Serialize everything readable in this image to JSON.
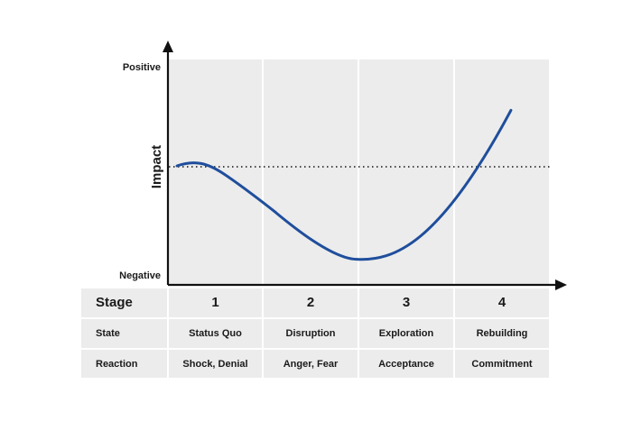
{
  "chart_data": {
    "type": "line",
    "ylabel": "Impact",
    "y_top_label": "Positive",
    "y_bottom_label": "Negative",
    "baseline_style": "dotted",
    "curve_color": "#1f4e9c",
    "panel_color": "#ececec",
    "stages": [
      "1",
      "2",
      "3",
      "4"
    ],
    "curve_shape": [
      {
        "stage_pos": 0.2,
        "impact": 0.0
      },
      {
        "stage_pos": 1.1,
        "impact": -0.45
      },
      {
        "stage_pos": 1.98,
        "impact": -0.95
      },
      {
        "stage_pos": 3.6,
        "impact": 0.58
      }
    ]
  },
  "table": {
    "header_label": "Stage",
    "rows": [
      {
        "label": "State",
        "values": [
          "Status Quo",
          "Disruption",
          "Exploration",
          "Rebuilding"
        ]
      },
      {
        "label": "Reaction",
        "values": [
          "Shock, Denial",
          "Anger, Fear",
          "Acceptance",
          "Commitment"
        ]
      }
    ]
  }
}
